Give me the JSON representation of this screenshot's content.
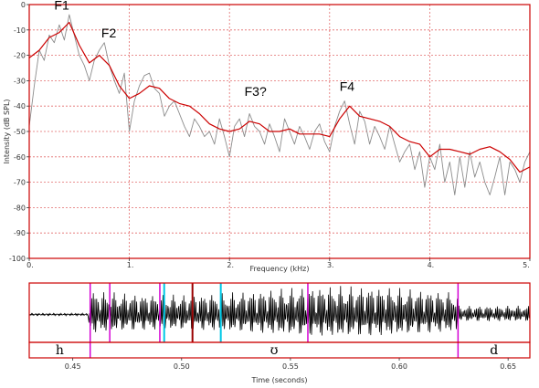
{
  "chart_data": [
    {
      "type": "line",
      "xlabel": "Frequency (kHz)",
      "ylabel": "Intensity (dB SPL)",
      "xlim": [
        0,
        5
      ],
      "ylim": [
        -100,
        0
      ],
      "x_ticks": [
        "0.",
        "1.",
        "2.",
        "3.",
        "4.",
        "5."
      ],
      "y_ticks": [
        "0",
        "-10",
        "-20",
        "-30",
        "-40",
        "-50",
        "-60",
        "-70",
        "-80",
        "-90",
        "-100"
      ],
      "grid": true,
      "colors": {
        "frame": "#cc0000",
        "grid": "#e26b6b",
        "spectrum": "#8c8c8c",
        "envelope": "#cc0000"
      },
      "series": [
        {
          "style": "spectrum",
          "x": [
            0.0,
            0.05,
            0.1,
            0.15,
            0.2,
            0.25,
            0.3,
            0.35,
            0.4,
            0.45,
            0.5,
            0.55,
            0.6,
            0.65,
            0.7,
            0.75,
            0.8,
            0.85,
            0.9,
            0.95,
            1.0,
            1.05,
            1.1,
            1.15,
            1.2,
            1.25,
            1.3,
            1.35,
            1.4,
            1.45,
            1.5,
            1.55,
            1.6,
            1.65,
            1.7,
            1.75,
            1.8,
            1.85,
            1.9,
            1.95,
            2.0,
            2.05,
            2.1,
            2.15,
            2.2,
            2.25,
            2.3,
            2.35,
            2.4,
            2.45,
            2.5,
            2.55,
            2.6,
            2.65,
            2.7,
            2.75,
            2.8,
            2.85,
            2.9,
            2.95,
            3.0,
            3.05,
            3.1,
            3.15,
            3.2,
            3.25,
            3.3,
            3.35,
            3.4,
            3.45,
            3.5,
            3.55,
            3.6,
            3.65,
            3.7,
            3.75,
            3.8,
            3.85,
            3.9,
            3.95,
            4.0,
            4.05,
            4.1,
            4.15,
            4.2,
            4.25,
            4.3,
            4.35,
            4.4,
            4.45,
            4.5,
            4.55,
            4.6,
            4.65,
            4.7,
            4.75,
            4.8,
            4.85,
            4.9,
            4.95,
            5.0
          ],
          "y": [
            -48,
            -32,
            -18,
            -22,
            -12,
            -15,
            -8,
            -14,
            -4,
            -12,
            -20,
            -24,
            -30,
            -22,
            -18,
            -15,
            -24,
            -30,
            -35,
            -27,
            -50,
            -38,
            -32,
            -28,
            -27,
            -33,
            -35,
            -44,
            -40,
            -38,
            -43,
            -48,
            -52,
            -45,
            -48,
            -52,
            -50,
            -55,
            -45,
            -52,
            -60,
            -48,
            -45,
            -52,
            -43,
            -48,
            -50,
            -55,
            -47,
            -52,
            -58,
            -45,
            -50,
            -55,
            -48,
            -52,
            -57,
            -50,
            -47,
            -54,
            -58,
            -48,
            -42,
            -38,
            -47,
            -55,
            -42,
            -46,
            -55,
            -48,
            -52,
            -57,
            -48,
            -55,
            -62,
            -58,
            -55,
            -65,
            -58,
            -72,
            -60,
            -65,
            -55,
            -70,
            -62,
            -75,
            -60,
            -72,
            -58,
            -68,
            -62,
            -70,
            -75,
            -68,
            -60,
            -75,
            -62,
            -65,
            -70,
            -62,
            -58
          ]
        },
        {
          "style": "envelope",
          "x": [
            0.0,
            0.1,
            0.2,
            0.3,
            0.4,
            0.5,
            0.6,
            0.7,
            0.8,
            0.9,
            1.0,
            1.1,
            1.2,
            1.3,
            1.4,
            1.5,
            1.6,
            1.7,
            1.8,
            1.9,
            2.0,
            2.1,
            2.2,
            2.3,
            2.4,
            2.5,
            2.6,
            2.7,
            2.8,
            2.9,
            3.0,
            3.1,
            3.2,
            3.3,
            3.4,
            3.5,
            3.6,
            3.7,
            3.8,
            3.9,
            4.0,
            4.1,
            4.2,
            4.3,
            4.4,
            4.5,
            4.6,
            4.7,
            4.8,
            4.9,
            5.0
          ],
          "y": [
            -21,
            -18,
            -13,
            -11,
            -7,
            -16,
            -23,
            -20,
            -24,
            -32,
            -37,
            -35,
            -32,
            -33,
            -37,
            -39,
            -40,
            -43,
            -47,
            -49,
            -50,
            -49,
            -46,
            -47,
            -50,
            -50,
            -49,
            -51,
            -51,
            -51,
            -52,
            -45,
            -40,
            -44,
            -45,
            -46,
            -48,
            -52,
            -54,
            -55,
            -60,
            -57,
            -57,
            -58,
            -59,
            -57,
            -56,
            -58,
            -61,
            -66,
            -64
          ]
        }
      ],
      "annotations": [
        "F1",
        "F2",
        "F3?",
        "F4"
      ]
    },
    {
      "type": "line",
      "xlabel": "Time (seconds)",
      "xlim": [
        0.43,
        0.66
      ],
      "x_ticks": [
        "0.45",
        "0.50",
        "0.55",
        "0.60",
        "0.65"
      ],
      "x_tick_values": [
        0.45,
        0.5,
        0.55,
        0.6,
        0.65
      ],
      "colors": {
        "frame": "#cc0000",
        "waveform": "#000000",
        "boundary": "#d400d4",
        "marker": "#00c8e6",
        "cursor": "#990000"
      },
      "segments": [
        {
          "label": "h",
          "start": 0.43,
          "end": 0.458
        },
        {
          "label": "ʊ",
          "start": 0.458,
          "end": 0.627
        },
        {
          "label": "d",
          "start": 0.627,
          "end": 0.66
        }
      ],
      "boundaries": [
        0.458,
        0.467,
        0.49,
        0.558,
        0.627
      ],
      "markers": [
        0.492,
        0.518
      ],
      "cursor": 0.505
    }
  ]
}
